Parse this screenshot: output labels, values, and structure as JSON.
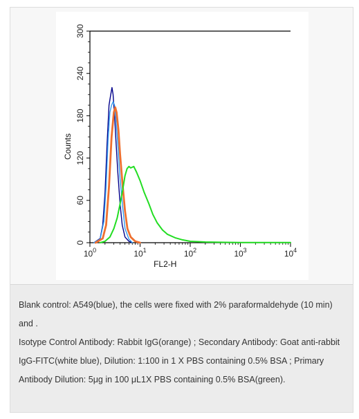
{
  "chart_data": {
    "type": "line",
    "xlabel": "FL2-H",
    "ylabel": "Counts",
    "x_scale": "log",
    "xlim": [
      1,
      10000
    ],
    "ylim": [
      0,
      300
    ],
    "x_ticks": [
      1,
      10,
      100,
      1000,
      10000
    ],
    "x_tick_labels": [
      {
        "base": "10",
        "exp": "0"
      },
      {
        "base": "10",
        "exp": "1"
      },
      {
        "base": "10",
        "exp": "2"
      },
      {
        "base": "10",
        "exp": "3"
      },
      {
        "base": "10",
        "exp": "4"
      }
    ],
    "y_ticks": [
      0,
      60,
      120,
      180,
      240,
      300
    ],
    "y_tick_labels": [
      "0",
      "60",
      "120",
      "180",
      "240",
      "300"
    ],
    "grid": false,
    "series": [
      {
        "color": "#00008b",
        "width": 1.4,
        "points": [
          [
            1.2,
            0
          ],
          [
            1.6,
            6
          ],
          [
            1.8,
            25
          ],
          [
            2.0,
            70
          ],
          [
            2.2,
            140
          ],
          [
            2.4,
            195
          ],
          [
            2.6,
            210
          ],
          [
            2.75,
            220
          ],
          [
            2.9,
            210
          ],
          [
            3.1,
            180
          ],
          [
            3.3,
            145
          ],
          [
            3.6,
            100
          ],
          [
            4.0,
            55
          ],
          [
            4.4,
            25
          ],
          [
            5.0,
            8
          ],
          [
            6.0,
            2
          ],
          [
            7.0,
            0
          ]
        ]
      },
      {
        "color": "#3399ee",
        "width": 1.4,
        "points": [
          [
            1.2,
            0
          ],
          [
            1.6,
            5
          ],
          [
            1.9,
            30
          ],
          [
            2.1,
            80
          ],
          [
            2.3,
            145
          ],
          [
            2.5,
            185
          ],
          [
            2.7,
            195
          ],
          [
            2.9,
            200
          ],
          [
            3.1,
            195
          ],
          [
            3.3,
            175
          ],
          [
            3.6,
            140
          ],
          [
            4.0,
            90
          ],
          [
            4.5,
            50
          ],
          [
            5.0,
            20
          ],
          [
            6.0,
            5
          ],
          [
            7.0,
            0
          ]
        ]
      },
      {
        "color": "#ee7030",
        "width": 2.8,
        "points": [
          [
            1.3,
            0
          ],
          [
            1.8,
            6
          ],
          [
            2.1,
            25
          ],
          [
            2.4,
            80
          ],
          [
            2.7,
            150
          ],
          [
            3.0,
            185
          ],
          [
            3.2,
            192
          ],
          [
            3.4,
            185
          ],
          [
            3.7,
            160
          ],
          [
            4.0,
            125
          ],
          [
            4.5,
            80
          ],
          [
            5.0,
            45
          ],
          [
            5.6,
            20
          ],
          [
            6.5,
            8
          ],
          [
            8.0,
            2
          ],
          [
            10.0,
            0
          ]
        ]
      },
      {
        "color": "#22dd22",
        "width": 2.0,
        "points": [
          [
            1.6,
            0
          ],
          [
            2.0,
            2
          ],
          [
            2.5,
            8
          ],
          [
            3.0,
            20
          ],
          [
            3.5,
            35
          ],
          [
            4.0,
            55
          ],
          [
            4.5,
            75
          ],
          [
            5.0,
            95
          ],
          [
            5.5,
            105
          ],
          [
            6.0,
            108
          ],
          [
            6.5,
            106
          ],
          [
            7.5,
            108
          ],
          [
            8.5,
            100
          ],
          [
            10.0,
            88
          ],
          [
            12.0,
            72
          ],
          [
            15.0,
            55
          ],
          [
            18.0,
            40
          ],
          [
            22.0,
            28
          ],
          [
            28.0,
            18
          ],
          [
            35.0,
            12
          ],
          [
            50.0,
            7
          ],
          [
            70.0,
            4
          ],
          [
            100.0,
            2
          ],
          [
            200.0,
            1
          ],
          [
            500.0,
            0.5
          ],
          [
            1000.0,
            0.3
          ],
          [
            10000.0,
            0.2
          ]
        ]
      }
    ]
  },
  "caption": {
    "line1": "Blank control: A549(blue), the cells were fixed with 2% paraformaldehyde (10 min) and .",
    "line2": "Isotype Control Antibody: Rabbit IgG(orange) ; Secondary Antibody: Goat anti-rabbit IgG-FITC(white blue), Dilution: 1:100 in 1 X PBS containing 0.5% BSA ; Primary Antibody Dilution: 5μg in 100 μL1X PBS containing 0.5% BSA(green)."
  }
}
